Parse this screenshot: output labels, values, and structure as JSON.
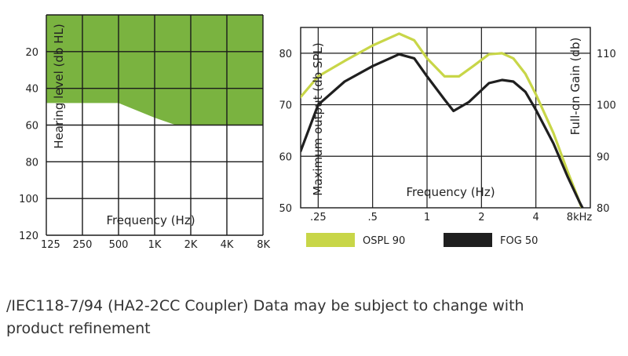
{
  "colors": {
    "fitting_range": "#7ab340",
    "ospl90": "#c8d648",
    "fog50": "#1f1f1f"
  },
  "chart_data": [
    {
      "type": "area",
      "title": "",
      "xlabel": "Frequency  (Hz)",
      "ylabel": "Hearing level  (db HL)",
      "x_ticks": [
        "125",
        "250",
        "500",
        "1K",
        "2K",
        "4K",
        "8K"
      ],
      "y_ticks": [
        "20",
        "40",
        "60",
        "80",
        "100",
        "120"
      ],
      "ylim": [
        0,
        120
      ],
      "y_inverted": true,
      "grid": true,
      "fitting_range": {
        "x": [
          "125",
          "250",
          "500",
          "1K",
          "1.5K",
          "2K",
          "4K",
          "8K"
        ],
        "upper_db": [
          0,
          0,
          0,
          0,
          0,
          0,
          0,
          0
        ],
        "lower_db": [
          48,
          48,
          48,
          56,
          60,
          60,
          60,
          60
        ]
      }
    },
    {
      "type": "line",
      "title": "",
      "xlabel": "Frequency  (Hz)",
      "ylabel": "Maximum output  (db SPL)",
      "ylabel_right": "Full-on Gain  (db)",
      "x_ticks": [
        ".25",
        ".5",
        "1",
        "2",
        "4",
        "8kHz"
      ],
      "y_ticks": [
        "50",
        "60",
        "70",
        "80"
      ],
      "y_ticks_right": [
        "80",
        "90",
        "100",
        "110"
      ],
      "ylim": [
        50,
        85
      ],
      "ylim_right": [
        80,
        115
      ],
      "grid": true,
      "legend": "bottom",
      "series": [
        {
          "name": "OSPL 90",
          "axis": "left",
          "x": [
            0.2,
            0.25,
            0.35,
            0.5,
            0.7,
            0.85,
            1.0,
            1.25,
            1.5,
            1.8,
            2.2,
            2.6,
            3.0,
            3.5,
            4.0,
            5.0,
            6.0,
            7.0,
            7.5
          ],
          "values": [
            71.5,
            75.5,
            78.5,
            81.5,
            83.8,
            82.5,
            79.0,
            75.5,
            75.5,
            77.5,
            79.8,
            80.0,
            79.0,
            76.0,
            72.0,
            64.5,
            57.0,
            51.0,
            48.0
          ]
        },
        {
          "name": "FOG 50",
          "axis": "right",
          "x": [
            0.2,
            0.25,
            0.35,
            0.5,
            0.7,
            0.85,
            1.0,
            1.25,
            1.4,
            1.7,
            2.2,
            2.6,
            3.0,
            3.5,
            4.0,
            5.0,
            6.0,
            7.0,
            7.5
          ],
          "values": [
            91.0,
            100.0,
            104.5,
            107.5,
            109.8,
            109.0,
            105.5,
            101.0,
            98.8,
            100.5,
            104.2,
            104.8,
            104.5,
            102.5,
            99.0,
            92.5,
            86.0,
            81.0,
            79.0
          ]
        }
      ]
    }
  ],
  "caption": {
    "line1": "/IEC118-7/94 (HA2-2CC Coupler)  Data may be subject to change with",
    "line2": "product refinement"
  }
}
